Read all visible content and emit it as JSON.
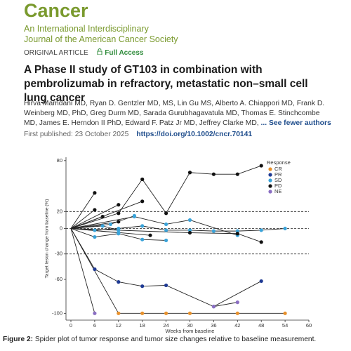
{
  "journal": {
    "name": "Cancer",
    "subtitle_lines": [
      "An International Interdisciplinary",
      "Journal of the American Cancer Society"
    ]
  },
  "article": {
    "type": "ORIGINAL ARTICLE",
    "access": "Full Access",
    "title": "A Phase II study of GT103 in combination with pembrolizumab in refractory, metastatic non–small cell lung cancer",
    "authors": [
      "Hirva Mamdani MD",
      "Ryan D. Gentzler MD, MS",
      "Lin Gu MS",
      "Alberto A. Chiappori MD",
      "Frank D. Weinberg MD, PhD",
      "Greg Durm MD",
      "Sarada Gurubhagavatula MD",
      "Thomas E. Stinchcombe MD",
      "James E. Herndon II PhD",
      "Edward F. Patz Jr MD",
      "Jeffrey Clarke MD"
    ],
    "authors_toggle": "... See fewer authors",
    "first_published_label": "First published:",
    "first_published": "23 October 2025",
    "doi": "https://doi.org/10.1002/cncr.70141"
  },
  "figure": {
    "label": "Figure 2:",
    "caption": "Spider plot of tumor response and tumor size changes relative to baseline measurement."
  },
  "chart_data": {
    "type": "spider",
    "x_label": "Weeks from baseline",
    "y_label": "Target lesion change from baseline (%)",
    "xlim": [
      0,
      60
    ],
    "xticks": [
      0,
      6,
      12,
      18,
      24,
      30,
      36,
      42,
      48,
      54,
      60
    ],
    "ylim": [
      -108,
      84
    ],
    "yticks": [
      -100,
      -60,
      -30,
      0,
      20,
      80
    ],
    "reference_lines": [
      20,
      0,
      -30
    ],
    "legend_title": "Response",
    "legend_position": "upper right",
    "series": [
      {
        "name": "CR",
        "color": "#e8912c",
        "lines": [
          {
            "x": [
              0,
              12,
              18,
              24,
              30,
              42,
              54
            ],
            "values": [
              0,
              -100,
              -100,
              -100,
              -100,
              -100,
              -100
            ]
          }
        ]
      },
      {
        "name": "PR",
        "color": "#1f3a93",
        "lines": [
          {
            "x": [
              0,
              6,
              12,
              18,
              24,
              36,
              48
            ],
            "values": [
              0,
              -48,
              -63,
              -68,
              -67,
              -92,
              -62
            ]
          }
        ]
      },
      {
        "name": "SD",
        "color": "#3aa3d9",
        "lines": [
          {
            "x": [
              0,
              6,
              12,
              18,
              24,
              30,
              36,
              42,
              48,
              54
            ],
            "values": [
              0,
              -2,
              0,
              3,
              -2,
              -2,
              -3,
              -3,
              -2,
              0
            ]
          },
          {
            "x": [
              0,
              16,
              24,
              30,
              42
            ],
            "values": [
              0,
              14,
              5,
              10,
              -8
            ]
          },
          {
            "x": [
              0,
              6,
              12,
              18,
              24
            ],
            "values": [
              0,
              -10,
              -6,
              -13,
              -14
            ]
          },
          {
            "x": [
              0,
              8,
              12
            ],
            "values": [
              0,
              3,
              -2
            ]
          },
          {
            "x": [
              0,
              10,
              16
            ],
            "values": [
              0,
              5,
              15
            ]
          },
          {
            "x": [
              0,
              12
            ],
            "values": [
              0,
              -5
            ]
          }
        ]
      },
      {
        "name": "PD",
        "color": "#111111",
        "lines": [
          {
            "x": [
              0,
              6
            ],
            "values": [
              0,
              42
            ]
          },
          {
            "x": [
              0,
              6
            ],
            "values": [
              0,
              22
            ]
          },
          {
            "x": [
              0,
              12,
              18,
              24,
              30,
              36,
              42,
              48
            ],
            "values": [
              0,
              18,
              58,
              18,
              66,
              64,
              64,
              74
            ]
          },
          {
            "x": [
              0,
              12
            ],
            "values": [
              0,
              28
            ]
          },
          {
            "x": [
              0,
              18
            ],
            "values": [
              0,
              32
            ]
          },
          {
            "x": [
              0,
              8
            ],
            "values": [
              0,
              14
            ]
          },
          {
            "x": [
              0,
              12
            ],
            "values": [
              0,
              8
            ]
          },
          {
            "x": [
              0,
              20
            ],
            "values": [
              0,
              -8
            ]
          },
          {
            "x": [
              0,
              30,
              42,
              48
            ],
            "values": [
              0,
              -5,
              -6,
              -16
            ]
          }
        ]
      },
      {
        "name": "NE",
        "color": "#8a6ec2",
        "lines": [
          {
            "x": [
              0,
              6
            ],
            "values": [
              0,
              -100
            ]
          },
          {
            "x": [
              36,
              42
            ],
            "values": [
              -92,
              -87
            ]
          }
        ]
      }
    ]
  }
}
